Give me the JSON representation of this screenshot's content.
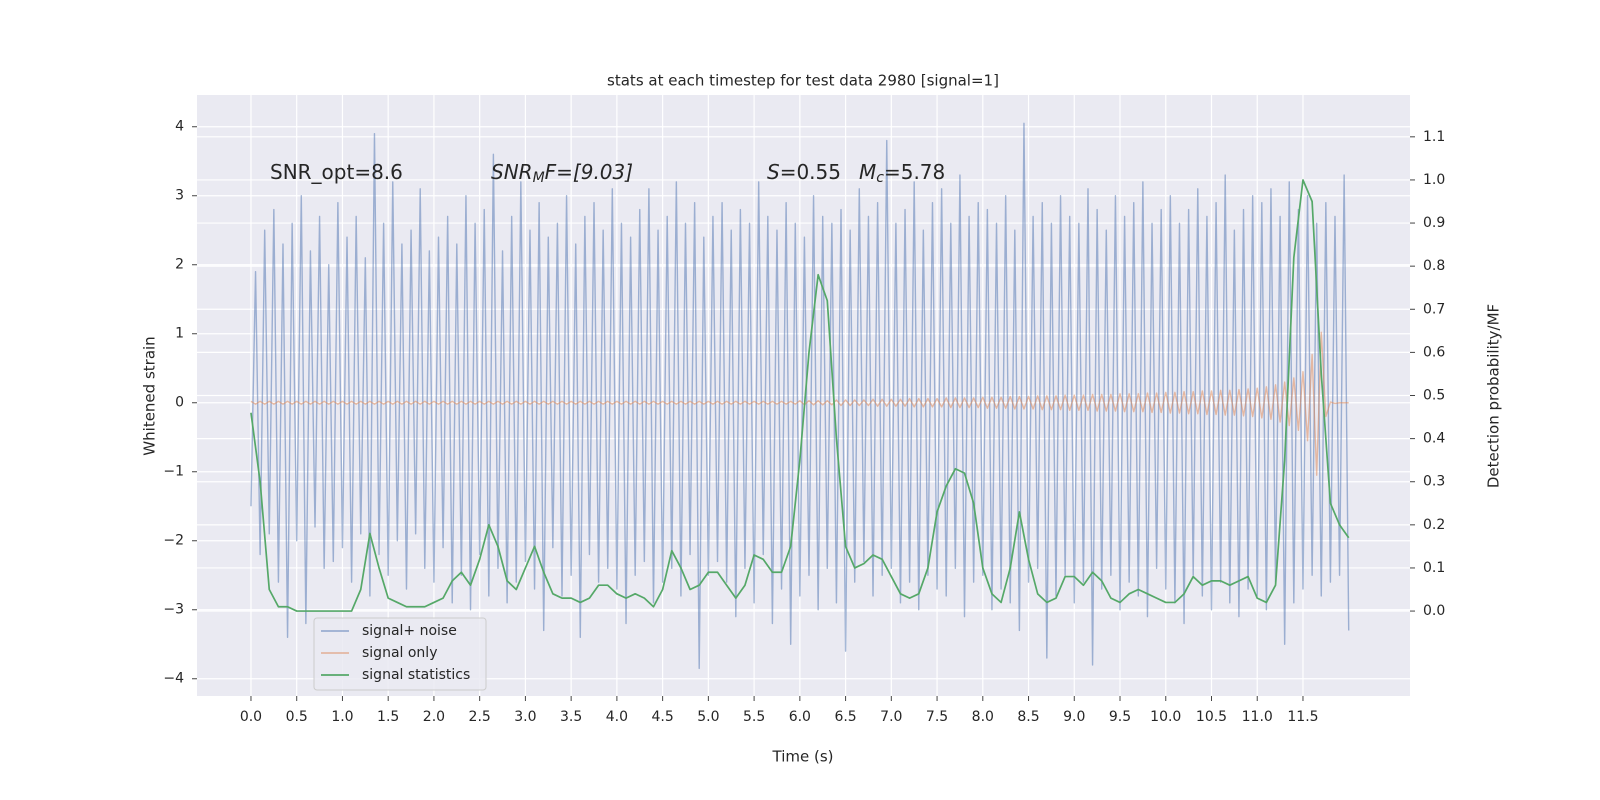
{
  "chart_data": {
    "type": "line",
    "title": "stats at each timestep for test data 2980 [signal=1]",
    "xlabel": "Time (s)",
    "ylabel": "Whitened strain",
    "y2label": "Detection probability/MF",
    "annotations": [
      [
        "SNR_opt=8.6"
      ],
      [
        "SNR",
        "M",
        "F=[9.03]"
      ],
      [
        "S",
        "=0.55"
      ],
      [
        "M",
        "c",
        "=5.78"
      ]
    ],
    "xlim": [
      -0.59,
      12.67
    ],
    "xticks": [
      {
        "value": 0,
        "label": "0.0"
      },
      0.5,
      {
        "value": 1,
        "label": "1.0"
      },
      1.5,
      {
        "value": 2,
        "label": "2.0"
      },
      2.5,
      {
        "value": 3,
        "label": "3.0"
      },
      3.5,
      {
        "value": 4,
        "label": "4.0"
      },
      4.5,
      {
        "value": 5,
        "label": "5.0"
      },
      5.5,
      {
        "value": 6,
        "label": "6.0"
      },
      6.5,
      {
        "value": 7,
        "label": "7.0"
      },
      7.5,
      {
        "value": 8,
        "label": "8.0"
      },
      8.5,
      {
        "value": 9,
        "label": "9.0"
      },
      9.5,
      {
        "value": 10,
        "label": "10.0"
      },
      10.5,
      {
        "value": 11,
        "label": "11.0"
      },
      11.5
    ],
    "ylim": [
      -4.25,
      4.46
    ],
    "yticks": [
      {
        "value": -4,
        "label": "−4"
      },
      {
        "value": -3,
        "label": "−3"
      },
      {
        "value": -2,
        "label": "−2"
      },
      {
        "value": -1,
        "label": "−1"
      },
      0,
      1,
      2,
      3,
      4
    ],
    "y2lim": [
      -0.197,
      1.197
    ],
    "y2ticks": [
      {
        "value": 0,
        "label": "0.0"
      },
      0.1,
      0.2,
      0.3,
      0.4,
      0.5,
      0.6,
      0.7,
      0.8,
      0.9,
      {
        "value": 1,
        "label": "1.0"
      },
      1.1
    ],
    "grid": true,
    "legend": "lower left",
    "x": [
      0,
      0.05,
      0.1,
      0.15,
      0.2,
      0.25,
      0.3,
      0.35,
      0.4,
      0.45,
      0.5,
      0.55,
      0.6,
      0.65,
      0.7,
      0.75,
      0.8,
      0.85,
      0.9,
      0.95,
      1,
      1.05,
      1.1,
      1.15,
      1.2,
      1.25,
      1.3,
      1.35,
      1.4,
      1.45,
      1.5,
      1.55,
      1.6,
      1.65,
      1.7,
      1.75,
      1.8,
      1.85,
      1.9,
      1.95,
      2,
      2.05,
      2.1,
      2.15,
      2.2,
      2.25,
      2.3,
      2.35,
      2.4,
      2.45,
      2.5,
      2.55,
      2.6,
      2.65,
      2.7,
      2.75,
      2.8,
      2.85,
      2.9,
      2.95,
      3,
      3.05,
      3.1,
      3.15,
      3.2,
      3.25,
      3.3,
      3.35,
      3.4,
      3.45,
      3.5,
      3.55,
      3.6,
      3.65,
      3.7,
      3.75,
      3.8,
      3.85,
      3.9,
      3.95,
      4,
      4.05,
      4.1,
      4.15,
      4.2,
      4.25,
      4.3,
      4.35,
      4.4,
      4.45,
      4.5,
      4.55,
      4.6,
      4.65,
      4.7,
      4.75,
      4.8,
      4.85,
      4.9,
      4.95,
      5,
      5.05,
      5.1,
      5.15,
      5.2,
      5.25,
      5.3,
      5.35,
      5.4,
      5.45,
      5.5,
      5.55,
      5.6,
      5.65,
      5.7,
      5.75,
      5.8,
      5.85,
      5.9,
      5.95,
      6,
      6.05,
      6.1,
      6.15,
      6.2,
      6.25,
      6.3,
      6.35,
      6.4,
      6.45,
      6.5,
      6.55,
      6.6,
      6.65,
      6.7,
      6.75,
      6.8,
      6.85,
      6.9,
      6.95,
      7,
      7.05,
      7.1,
      7.15,
      7.2,
      7.25,
      7.3,
      7.35,
      7.4,
      7.45,
      7.5,
      7.55,
      7.6,
      7.65,
      7.7,
      7.75,
      7.8,
      7.85,
      7.9,
      7.95,
      8,
      8.05,
      8.1,
      8.15,
      8.2,
      8.25,
      8.3,
      8.35,
      8.4,
      8.45,
      8.5,
      8.55,
      8.6,
      8.65,
      8.7,
      8.75,
      8.8,
      8.85,
      8.9,
      8.95,
      9,
      9.05,
      9.1,
      9.15,
      9.2,
      9.25,
      9.3,
      9.35,
      9.4,
      9.45,
      9.5,
      9.55,
      9.6,
      9.65,
      9.7,
      9.75,
      9.8,
      9.85,
      9.9,
      9.95,
      10,
      10.05,
      10.1,
      10.15,
      10.2,
      10.25,
      10.3,
      10.35,
      10.4,
      10.45,
      10.5,
      10.55,
      10.6,
      10.65,
      10.7,
      10.75,
      10.8,
      10.85,
      10.9,
      10.95,
      11,
      11.05,
      11.1,
      11.15,
      11.2,
      11.25,
      11.3,
      11.35,
      11.4,
      11.45,
      11.5,
      11.55,
      11.6,
      11.65,
      11.7,
      11.75,
      11.8,
      11.85,
      11.9,
      11.95,
      12
    ],
    "series": [
      {
        "name": "signal+ noise",
        "color": "#4c72b0",
        "values": [
          -1.5,
          1.9,
          -2.2,
          2.5,
          -1.9,
          2.8,
          -2.6,
          2.3,
          -3.4,
          2.6,
          -2.0,
          3.0,
          -3.2,
          2.2,
          -1.8,
          2.7,
          -2.4,
          2.0,
          -2.3,
          2.9,
          -2.1,
          2.4,
          -2.6,
          2.7,
          -1.9,
          2.1,
          -2.8,
          3.9,
          -2.2,
          2.6,
          -2.5,
          3.2,
          -2.0,
          2.3,
          -2.7,
          2.5,
          -1.9,
          3.1,
          -2.4,
          2.2,
          -2.6,
          2.4,
          -2.1,
          2.7,
          -2.9,
          2.3,
          -2.5,
          3.0,
          -3.0,
          2.6,
          -2.2,
          2.8,
          -2.8,
          3.6,
          -2.4,
          2.2,
          -2.9,
          2.7,
          -2.6,
          3.2,
          -2.3,
          2.5,
          -2.7,
          2.9,
          -3.3,
          2.4,
          -2.1,
          2.6,
          -2.8,
          3.0,
          -2.5,
          2.3,
          -3.4,
          2.7,
          -2.2,
          2.9,
          -2.6,
          2.5,
          -2.4,
          3.1,
          -2.7,
          2.6,
          -3.2,
          2.4,
          -2.5,
          2.8,
          -2.3,
          3.1,
          -2.9,
          2.5,
          -2.6,
          2.7,
          -2.4,
          3.2,
          -2.8,
          2.6,
          -2.2,
          2.9,
          -3.85,
          2.4,
          -2.5,
          2.7,
          -2.3,
          2.9,
          -2.6,
          2.5,
          -3.1,
          2.8,
          -2.4,
          2.6,
          -2.9,
          3.2,
          -2.2,
          2.7,
          -3.2,
          2.5,
          -2.7,
          2.9,
          -3.5,
          2.6,
          -2.8,
          2.4,
          -2.5,
          3.0,
          -3.0,
          2.7,
          -2.4,
          2.6,
          -2.9,
          2.8,
          -3.6,
          2.5,
          -2.6,
          3.1,
          -2.3,
          2.7,
          -2.8,
          2.9,
          -2.5,
          3.8,
          -2.4,
          2.6,
          -2.9,
          2.8,
          -2.6,
          3.2,
          -3.0,
          2.5,
          -2.5,
          2.9,
          -2.7,
          3.1,
          -2.8,
          2.6,
          -2.4,
          3.3,
          -3.1,
          2.7,
          -2.6,
          2.9,
          -2.5,
          2.8,
          -3.0,
          2.6,
          -2.7,
          3.0,
          -2.9,
          2.5,
          -3.3,
          4.05,
          -2.6,
          2.7,
          -2.4,
          2.9,
          -3.7,
          2.6,
          -2.8,
          3.0,
          -2.5,
          2.7,
          -2.9,
          2.6,
          -2.6,
          3.1,
          -3.8,
          2.8,
          -2.7,
          2.5,
          -2.5,
          3.0,
          -3.0,
          2.7,
          -2.6,
          2.9,
          -2.8,
          3.2,
          -3.1,
          2.6,
          -2.4,
          2.8,
          -2.7,
          3.0,
          -2.9,
          2.6,
          -3.2,
          2.8,
          -2.5,
          3.1,
          -2.8,
          2.7,
          -3.0,
          2.9,
          -2.6,
          3.3,
          -2.9,
          2.5,
          -3.1,
          2.8,
          -2.7,
          3.0,
          -2.8,
          2.9,
          -3.0,
          3.1,
          -2.6,
          2.7,
          -3.5,
          3.2,
          -2.9,
          2.8,
          -2.7,
          3.0,
          -2.5,
          2.6,
          -2.8,
          2.9,
          -2.6,
          2.7,
          -2.5,
          3.3,
          -3.3
        ]
      },
      {
        "name": "signal only",
        "color": "#dd8452",
        "values": [
          0.02,
          -0.02,
          0.02,
          -0.02,
          0.02,
          -0.02,
          0.02,
          -0.02,
          0.02,
          -0.02,
          0.02,
          -0.02,
          0.02,
          -0.02,
          0.02,
          -0.02,
          0.02,
          -0.02,
          0.02,
          -0.02,
          0.02,
          -0.02,
          0.02,
          -0.02,
          0.02,
          -0.02,
          0.02,
          -0.02,
          0.02,
          -0.02,
          0.02,
          -0.02,
          0.02,
          -0.02,
          0.02,
          -0.02,
          0.02,
          -0.02,
          0.02,
          -0.02,
          0.02,
          -0.02,
          0.02,
          -0.02,
          0.02,
          -0.02,
          0.02,
          -0.02,
          0.02,
          -0.02,
          0.02,
          -0.02,
          0.02,
          -0.02,
          0.02,
          -0.02,
          0.02,
          -0.02,
          0.02,
          -0.02,
          0.02,
          -0.02,
          0.02,
          -0.02,
          0.02,
          -0.02,
          0.02,
          -0.02,
          0.02,
          -0.02,
          0.02,
          -0.02,
          0.02,
          -0.02,
          0.02,
          -0.02,
          0.02,
          -0.02,
          0.02,
          -0.02,
          0.02,
          -0.02,
          0.02,
          -0.02,
          0.02,
          -0.02,
          0.02,
          -0.02,
          0.02,
          -0.02,
          0.02,
          -0.02,
          0.02,
          -0.02,
          0.02,
          -0.02,
          0.02,
          -0.02,
          0.02,
          -0.02,
          0.02,
          -0.02,
          0.02,
          -0.02,
          0.02,
          -0.02,
          0.02,
          -0.02,
          0.02,
          -0.02,
          0.02,
          -0.02,
          0.02,
          -0.02,
          0.02,
          -0.02,
          0.02,
          -0.02,
          0.02,
          -0.02,
          0.03,
          -0.03,
          0.03,
          -0.03,
          0.03,
          -0.03,
          0.03,
          -0.03,
          0.04,
          -0.04,
          0.04,
          -0.04,
          0.04,
          -0.04,
          0.04,
          -0.04,
          0.05,
          -0.05,
          0.05,
          -0.05,
          0.05,
          -0.05,
          0.05,
          -0.05,
          0.06,
          -0.06,
          0.06,
          -0.06,
          0.06,
          -0.06,
          0.06,
          -0.06,
          0.07,
          -0.07,
          0.07,
          -0.07,
          0.07,
          -0.07,
          0.07,
          -0.07,
          0.08,
          -0.08,
          0.08,
          -0.08,
          0.08,
          -0.08,
          0.09,
          -0.09,
          0.09,
          -0.09,
          0.09,
          -0.09,
          0.1,
          -0.1,
          0.1,
          -0.1,
          0.1,
          -0.1,
          0.11,
          -0.11,
          0.11,
          -0.11,
          0.11,
          -0.11,
          0.12,
          -0.12,
          0.12,
          -0.12,
          0.12,
          -0.12,
          0.13,
          -0.13,
          0.13,
          -0.13,
          0.13,
          -0.13,
          0.14,
          -0.14,
          0.14,
          -0.14,
          0.15,
          -0.15,
          0.15,
          -0.15,
          0.16,
          -0.16,
          0.16,
          -0.16,
          0.17,
          -0.17,
          0.17,
          -0.17,
          0.18,
          -0.18,
          0.18,
          -0.18,
          0.19,
          -0.19,
          0.2,
          -0.2,
          0.21,
          -0.22,
          0.23,
          -0.24,
          0.26,
          -0.28,
          0.3,
          -0.33,
          0.36,
          -0.4,
          0.45,
          -0.55,
          0.7,
          -1.05,
          1.02,
          -0.2,
          0.01,
          -0.01,
          0,
          0,
          0
        ]
      },
      {
        "name": "signal statistics",
        "color": "#55a868",
        "axis": "y2",
        "x": [
          0,
          0.1,
          0.2,
          0.3,
          0.4,
          0.5,
          0.6,
          0.7,
          0.8,
          0.9,
          1,
          1.1,
          1.2,
          1.3,
          1.4,
          1.5,
          1.6,
          1.7,
          1.8,
          1.9,
          2,
          2.1,
          2.2,
          2.3,
          2.4,
          2.5,
          2.6,
          2.7,
          2.8,
          2.9,
          3,
          3.1,
          3.2,
          3.3,
          3.4,
          3.5,
          3.6,
          3.7,
          3.8,
          3.9,
          4,
          4.1,
          4.2,
          4.3,
          4.4,
          4.5,
          4.6,
          4.7,
          4.8,
          4.9,
          5,
          5.1,
          5.2,
          5.3,
          5.4,
          5.5,
          5.6,
          5.7,
          5.8,
          5.9,
          6,
          6.1,
          6.2,
          6.3,
          6.4,
          6.5,
          6.6,
          6.7,
          6.8,
          6.9,
          7,
          7.1,
          7.2,
          7.3,
          7.4,
          7.5,
          7.6,
          7.7,
          7.8,
          7.9,
          8,
          8.1,
          8.2,
          8.3,
          8.4,
          8.5,
          8.6,
          8.7,
          8.8,
          8.9,
          9,
          9.1,
          9.2,
          9.3,
          9.4,
          9.5,
          9.6,
          9.7,
          9.8,
          9.9,
          10,
          10.1,
          10.2,
          10.3,
          10.4,
          10.5,
          10.6,
          10.7,
          10.8,
          10.9,
          11,
          11.1,
          11.2,
          11.3,
          11.4,
          11.5,
          11.6,
          11.7,
          11.8,
          11.9,
          12
        ],
        "values": [
          0.46,
          0.3,
          0.05,
          0.01,
          0.01,
          0,
          0,
          0,
          0,
          0,
          0,
          0,
          0.05,
          0.18,
          0.1,
          0.03,
          0.02,
          0.01,
          0.01,
          0.01,
          0.02,
          0.03,
          0.07,
          0.09,
          0.06,
          0.12,
          0.2,
          0.15,
          0.07,
          0.05,
          0.1,
          0.15,
          0.09,
          0.04,
          0.03,
          0.03,
          0.02,
          0.03,
          0.06,
          0.06,
          0.04,
          0.03,
          0.04,
          0.03,
          0.01,
          0.05,
          0.14,
          0.1,
          0.05,
          0.06,
          0.09,
          0.09,
          0.06,
          0.03,
          0.06,
          0.13,
          0.12,
          0.09,
          0.09,
          0.15,
          0.35,
          0.6,
          0.78,
          0.72,
          0.4,
          0.15,
          0.1,
          0.11,
          0.13,
          0.12,
          0.08,
          0.04,
          0.03,
          0.04,
          0.1,
          0.23,
          0.29,
          0.33,
          0.32,
          0.25,
          0.1,
          0.04,
          0.02,
          0.1,
          0.23,
          0.12,
          0.04,
          0.02,
          0.03,
          0.08,
          0.08,
          0.06,
          0.09,
          0.07,
          0.03,
          0.02,
          0.04,
          0.05,
          0.04,
          0.03,
          0.02,
          0.02,
          0.04,
          0.08,
          0.06,
          0.07,
          0.07,
          0.06,
          0.07,
          0.08,
          0.03,
          0.02,
          0.06,
          0.35,
          0.82,
          1.0,
          0.95,
          0.55,
          0.25,
          0.2,
          0.17
        ]
      }
    ]
  }
}
